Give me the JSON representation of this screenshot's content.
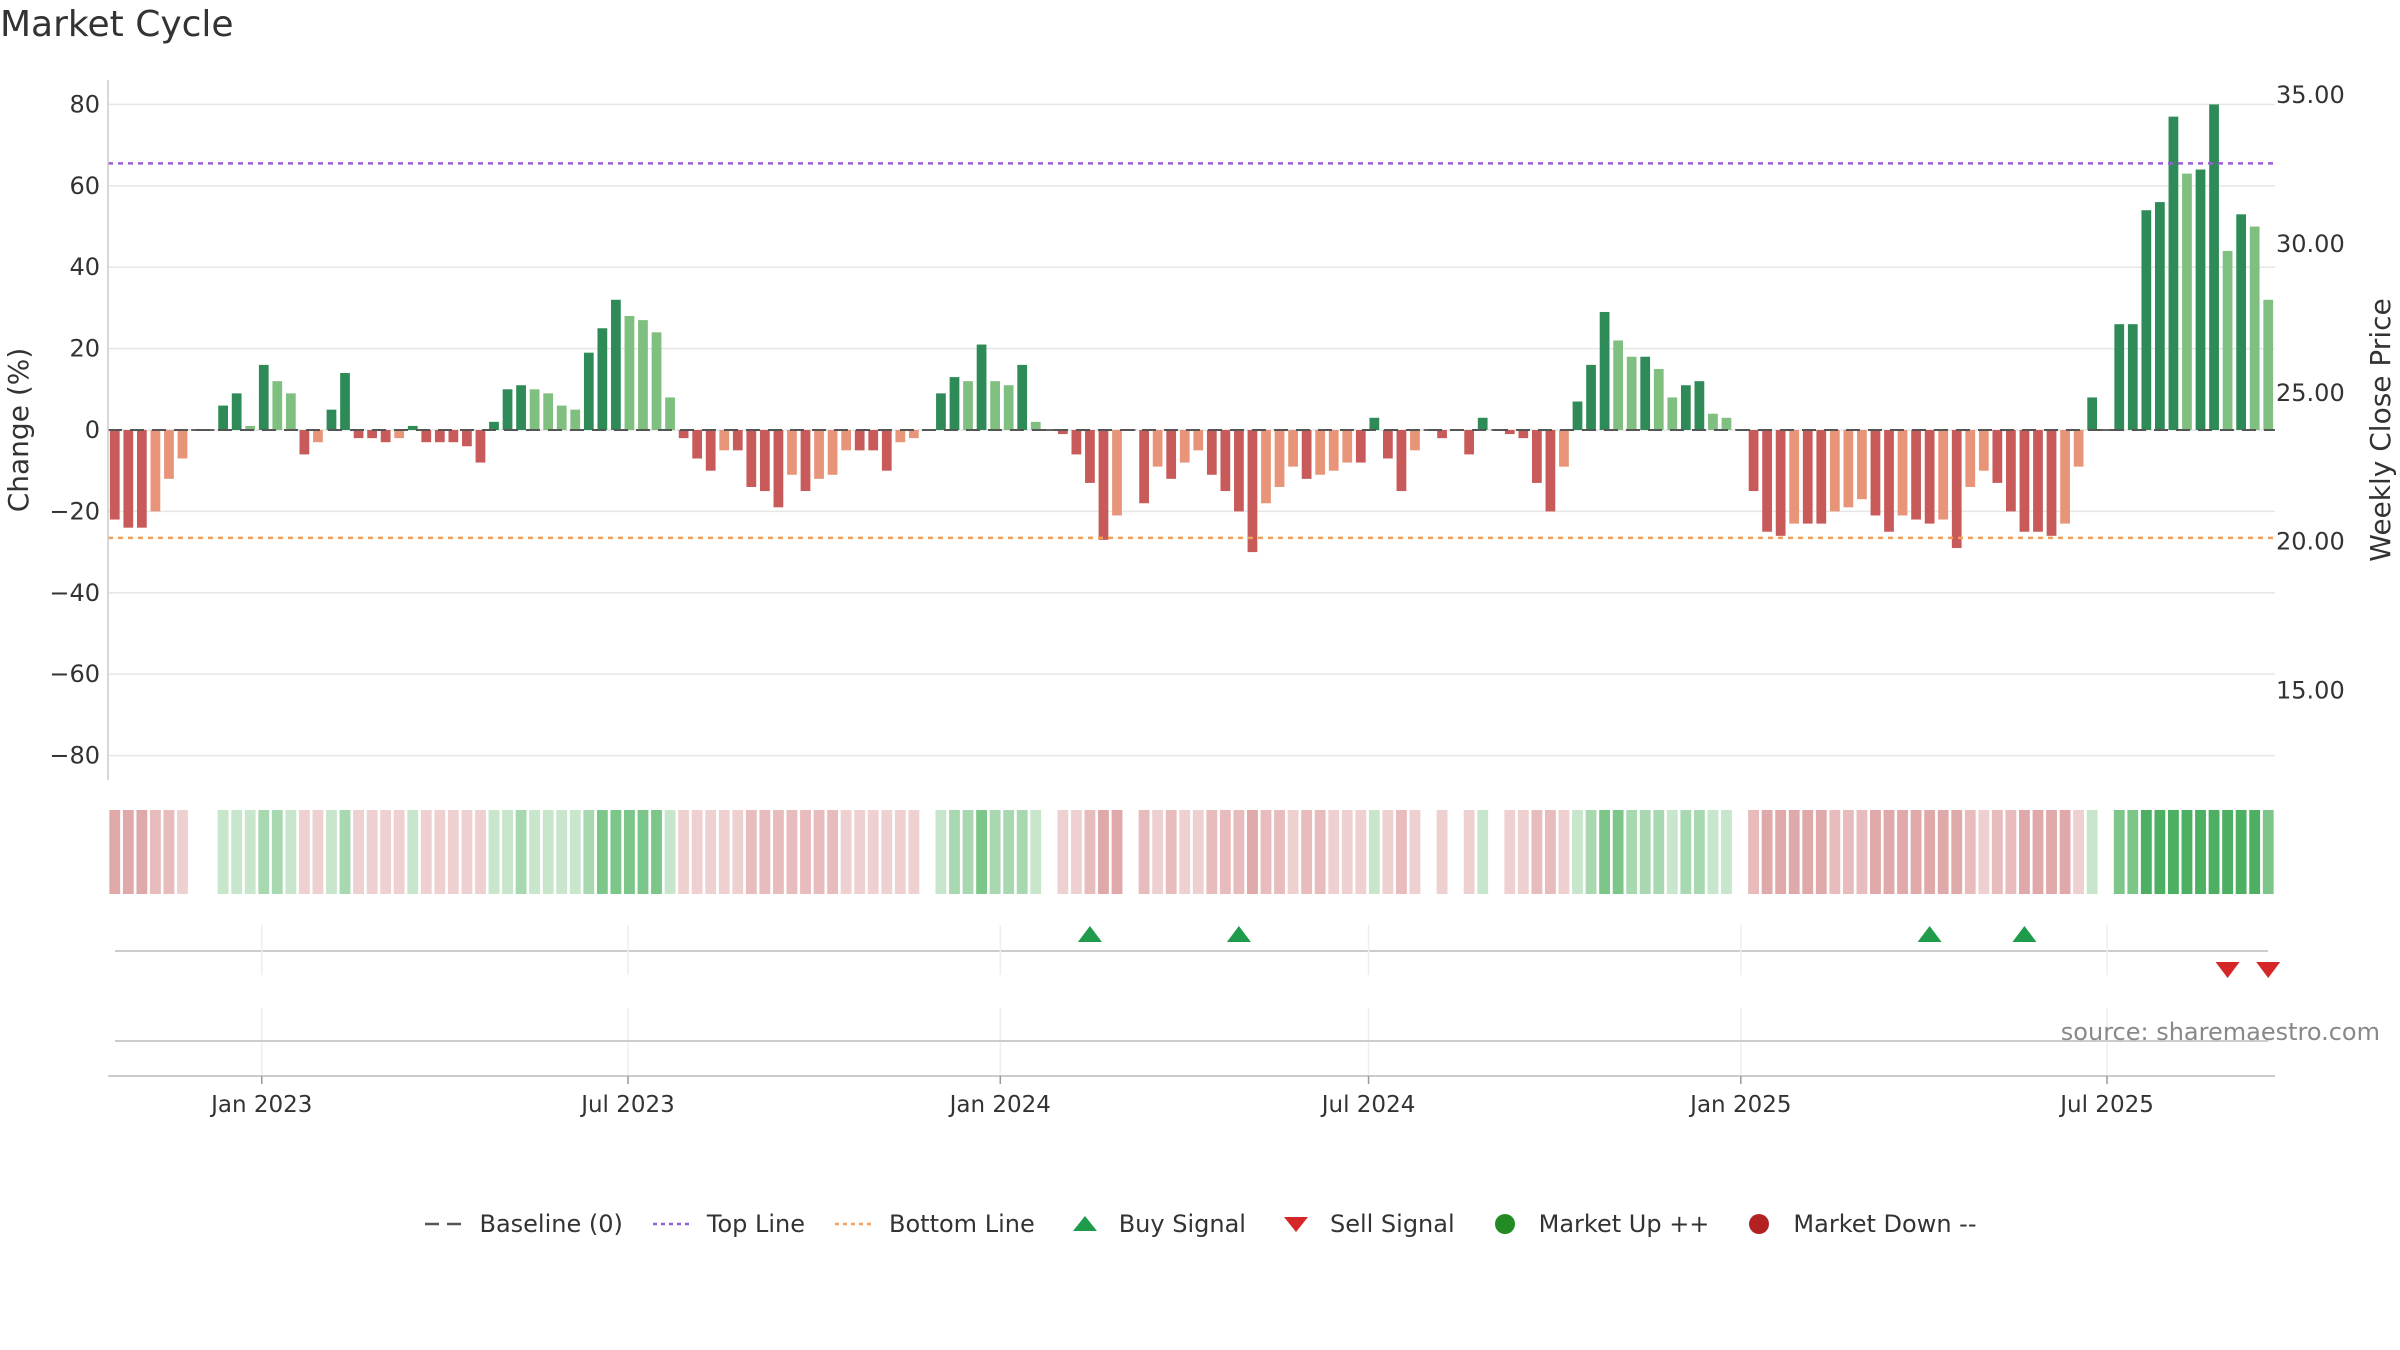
{
  "title": "Market Cycle",
  "source_text": "source: sharemaestro.com",
  "legend": [
    {
      "label": "Baseline (0)",
      "icon": "dash-line-icon",
      "color": "#555555"
    },
    {
      "label": "Top Line",
      "icon": "dotted-line-icon",
      "color": "#9b5fd6"
    },
    {
      "label": "Bottom Line",
      "icon": "dotted-line-icon",
      "color": "#f0a05a"
    },
    {
      "label": "Buy Signal",
      "icon": "triangle-up-icon",
      "color": "#1e9b4b"
    },
    {
      "label": "Sell Signal",
      "icon": "triangle-down-icon",
      "color": "#d62728"
    },
    {
      "label": "Market Up ++",
      "icon": "circle-icon",
      "color": "#228b22"
    },
    {
      "label": "Market Down --",
      "icon": "circle-icon",
      "color": "#b22222"
    }
  ],
  "chart_data": {
    "type": "bar",
    "ylabel_left": "Change (%)",
    "ylabel_right": "Weekly Close Price",
    "ylim": [
      -86,
      86
    ],
    "yticks_left": [
      80,
      60,
      40,
      20,
      0,
      -20,
      -40,
      -60,
      -80
    ],
    "y2lim": [
      12,
      35.5
    ],
    "yticks_right": [
      "35.00",
      "30.00",
      "25.00",
      "20.00",
      "15.00"
    ],
    "top_line": 65.5,
    "bottom_line": -26.5,
    "x_start": "2022-10-17",
    "x_end": "2025-09-22",
    "xticks": [
      {
        "date": "2023-01-01",
        "label": "Jan 2023"
      },
      {
        "date": "2023-07-01",
        "label": "Jul 2023"
      },
      {
        "date": "2024-01-01",
        "label": "Jan 2024"
      },
      {
        "date": "2024-07-01",
        "label": "Jul 2024"
      },
      {
        "date": "2025-01-01",
        "label": "Jan 2025"
      },
      {
        "date": "2025-07-01",
        "label": "Jul 2025"
      }
    ],
    "values": [
      -22,
      -24,
      -24,
      -20,
      -12,
      -7,
      0,
      0,
      6,
      9,
      1,
      16,
      12,
      9,
      -6,
      -3,
      5,
      14,
      -2,
      -2,
      -3,
      -2,
      1,
      -3,
      -3,
      -3,
      -4,
      -8,
      2,
      10,
      11,
      10,
      9,
      6,
      5,
      19,
      25,
      32,
      28,
      27,
      24,
      8,
      -2,
      -7,
      -10,
      -5,
      -5,
      -14,
      -15,
      -19,
      -11,
      -15,
      -12,
      -11,
      -5,
      -5,
      -5,
      -10,
      -3,
      -2,
      0,
      9,
      13,
      12,
      21,
      12,
      11,
      16,
      2,
      0,
      -1,
      -6,
      -13,
      -27,
      -21,
      0,
      -18,
      -9,
      -12,
      -8,
      -5,
      -11,
      -15,
      -20,
      -30,
      -18,
      -14,
      -9,
      -12,
      -11,
      -10,
      -8,
      -8,
      3,
      -7,
      -15,
      -5,
      0,
      -2,
      0,
      -6,
      3,
      0,
      -1,
      -2,
      -13,
      -20,
      -9,
      7,
      16,
      29,
      22,
      18,
      18,
      15,
      8,
      11,
      12,
      4,
      3,
      0,
      -15,
      -25,
      -26,
      -23,
      -23,
      -23,
      -20,
      -19,
      -17,
      -21,
      -25,
      -21,
      -22,
      -23,
      -22,
      -29,
      -14,
      -10,
      -13,
      -20,
      -25,
      -25,
      -26,
      -23,
      -9,
      8,
      0,
      26,
      26,
      54,
      56,
      77,
      63,
      64,
      80,
      44,
      53,
      50,
      32
    ],
    "buy_signal_weeks": [
      72,
      83,
      134,
      141
    ],
    "sell_signal_weeks": [
      156,
      159
    ]
  }
}
